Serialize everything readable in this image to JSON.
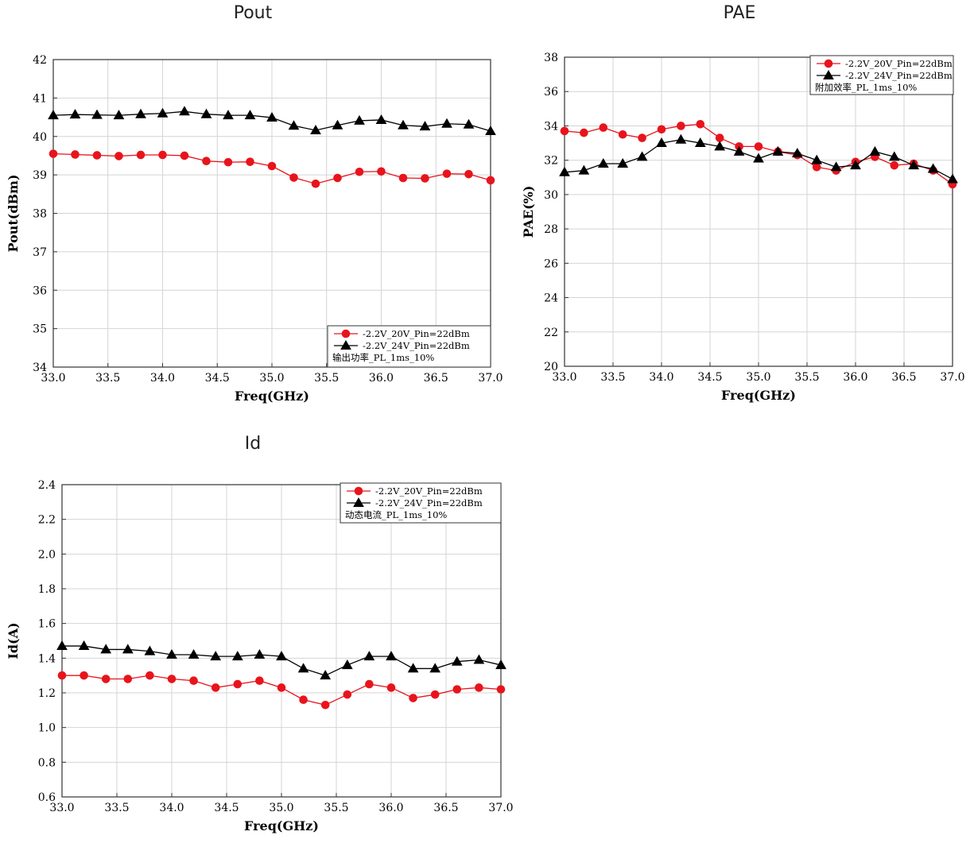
{
  "titles": {
    "pout": "Pout",
    "pae": "PAE",
    "id": "Id"
  },
  "colors": {
    "series1": "#e8141c",
    "series2": "#000000",
    "grid": "#d4d4d4"
  },
  "chart_data": [
    {
      "key": "pout",
      "type": "line",
      "title": "Pout",
      "xlabel": "Freq(GHz)",
      "ylabel": "Pout(dBm)",
      "xlim": [
        33.0,
        37.0
      ],
      "ylim": [
        34,
        42
      ],
      "xticks": [
        "33.0",
        "33.5",
        "34.0",
        "34.5",
        "35.0",
        "35.5",
        "36.0",
        "36.5",
        "37.0"
      ],
      "yticks": [
        "34",
        "35",
        "36",
        "37",
        "38",
        "39",
        "40",
        "41",
        "42"
      ],
      "x": [
        33.0,
        33.2,
        33.4,
        33.6,
        33.8,
        34.0,
        34.2,
        34.4,
        34.6,
        34.8,
        35.0,
        35.2,
        35.4,
        35.6,
        35.8,
        36.0,
        36.2,
        36.4,
        36.6,
        36.8,
        37.0
      ],
      "series": [
        {
          "name": "-2.2V_20V_Pin=22dBm",
          "marker": "circle",
          "values": [
            39.55,
            39.53,
            39.51,
            39.49,
            39.52,
            39.52,
            39.5,
            39.36,
            39.33,
            39.34,
            39.23,
            38.93,
            38.77,
            38.92,
            39.08,
            39.09,
            38.92,
            38.91,
            39.03,
            39.02,
            38.86
          ]
        },
        {
          "name": "-2.2V_24V_Pin=22dBm",
          "marker": "triangle",
          "values": [
            40.55,
            40.57,
            40.56,
            40.55,
            40.58,
            40.6,
            40.65,
            40.58,
            40.55,
            40.55,
            40.49,
            40.28,
            40.16,
            40.29,
            40.41,
            40.43,
            40.29,
            40.26,
            40.33,
            40.31,
            40.14
          ]
        }
      ],
      "legend_note": "输出功率_PL_1ms_10%",
      "legend_position": "bottom-right"
    },
    {
      "key": "pae",
      "type": "line",
      "title": "PAE",
      "xlabel": "Freq(GHz)",
      "ylabel": "PAE(%)",
      "xlim": [
        33.0,
        37.0
      ],
      "ylim": [
        20,
        38
      ],
      "xticks": [
        "33.0",
        "33.5",
        "34.0",
        "34.5",
        "35.0",
        "35.5",
        "36.0",
        "36.5",
        "37.0"
      ],
      "yticks": [
        "20",
        "22",
        "24",
        "26",
        "28",
        "30",
        "32",
        "34",
        "36",
        "38"
      ],
      "x": [
        33.0,
        33.2,
        33.4,
        33.6,
        33.8,
        34.0,
        34.2,
        34.4,
        34.6,
        34.8,
        35.0,
        35.2,
        35.4,
        35.6,
        35.8,
        36.0,
        36.2,
        36.4,
        36.6,
        36.8,
        37.0
      ],
      "series": [
        {
          "name": "-2.2V_20V_Pin=22dBm",
          "marker": "circle",
          "values": [
            33.7,
            33.6,
            33.9,
            33.5,
            33.3,
            33.8,
            34.0,
            34.1,
            33.3,
            32.8,
            32.8,
            32.5,
            32.3,
            31.6,
            31.4,
            31.9,
            32.2,
            31.7,
            31.8,
            31.4,
            30.6
          ]
        },
        {
          "name": "-2.2V_24V_Pin=22dBm",
          "marker": "triangle",
          "values": [
            31.3,
            31.4,
            31.8,
            31.8,
            32.2,
            33.0,
            33.2,
            33.0,
            32.8,
            32.5,
            32.1,
            32.5,
            32.4,
            32.0,
            31.6,
            31.7,
            32.5,
            32.2,
            31.7,
            31.5,
            30.9
          ]
        }
      ],
      "legend_note": "附加效率_PL_1ms_10%",
      "legend_position": "top-right"
    },
    {
      "key": "id",
      "type": "line",
      "title": "Id",
      "xlabel": "Freq(GHz)",
      "ylabel": "Id(A)",
      "xlim": [
        33.0,
        37.0
      ],
      "ylim": [
        0.6,
        2.4
      ],
      "xticks": [
        "33.0",
        "33.5",
        "34.0",
        "34.5",
        "35.0",
        "35.5",
        "36.0",
        "36.5",
        "37.0"
      ],
      "yticks": [
        "0.6",
        "0.8",
        "1.0",
        "1.2",
        "1.4",
        "1.6",
        "1.8",
        "2.0",
        "2.2",
        "2.4"
      ],
      "x": [
        33.0,
        33.2,
        33.4,
        33.6,
        33.8,
        34.0,
        34.2,
        34.4,
        34.6,
        34.8,
        35.0,
        35.2,
        35.4,
        35.6,
        35.8,
        36.0,
        36.2,
        36.4,
        36.6,
        36.8,
        37.0
      ],
      "series": [
        {
          "name": "-2.2V_20V_Pin=22dBm",
          "marker": "circle",
          "values": [
            1.3,
            1.3,
            1.28,
            1.28,
            1.3,
            1.28,
            1.27,
            1.23,
            1.25,
            1.27,
            1.23,
            1.16,
            1.13,
            1.19,
            1.25,
            1.23,
            1.17,
            1.19,
            1.22,
            1.23,
            1.22
          ]
        },
        {
          "name": "-2.2V_24V_Pin=22dBm",
          "marker": "triangle",
          "values": [
            1.47,
            1.47,
            1.45,
            1.45,
            1.44,
            1.42,
            1.42,
            1.41,
            1.41,
            1.42,
            1.41,
            1.34,
            1.3,
            1.36,
            1.41,
            1.41,
            1.34,
            1.34,
            1.38,
            1.39,
            1.36
          ]
        }
      ],
      "legend_note": "动态电流_PL_1ms_10%",
      "legend_position": "top-right"
    }
  ]
}
